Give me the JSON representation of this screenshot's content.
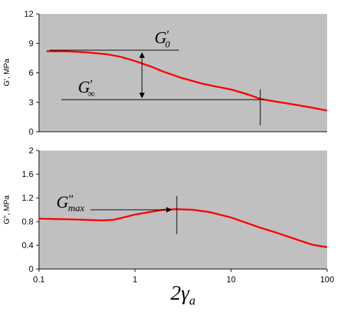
{
  "chart_data": [
    {
      "type": "line",
      "panel": "top",
      "ylabel": "G', MPa",
      "ylim": [
        0,
        12
      ],
      "yticks": [
        "0",
        "3",
        "6",
        "9",
        "12"
      ],
      "xscale": "log",
      "xlim": [
        0.1,
        100
      ],
      "grid": false,
      "series": [
        {
          "color": "#ff0000",
          "x": [
            0.12,
            0.2,
            0.3,
            0.5,
            0.7,
            1,
            1.5,
            2,
            3,
            5,
            7,
            10,
            15,
            20,
            30,
            50,
            70,
            100
          ],
          "y": [
            8.2,
            8.18,
            8.1,
            7.9,
            7.65,
            7.2,
            6.6,
            6.1,
            5.5,
            4.9,
            4.6,
            4.3,
            3.8,
            3.35,
            3.05,
            2.7,
            2.45,
            2.15
          ]
        }
      ],
      "annotations": [
        {
          "main": "G",
          "mark": "′",
          "sub": "0"
        },
        {
          "main": "G",
          "mark": "′",
          "sub": "∞"
        }
      ]
    },
    {
      "type": "line",
      "panel": "bottom",
      "ylabel": "G'', MPa",
      "ylim": [
        0,
        2
      ],
      "yticks": [
        "0",
        "0.4",
        "0.8",
        "1.2",
        "1.6",
        "2"
      ],
      "xscale": "log",
      "xlim": [
        0.1,
        100
      ],
      "xticks": [
        "0.1",
        "1",
        "10",
        "100"
      ],
      "xlabel_main": "2γ",
      "xlabel_sub": "a",
      "grid": false,
      "series": [
        {
          "color": "#ff0000",
          "x": [
            0.1,
            0.2,
            0.3,
            0.45,
            0.6,
            0.8,
            1,
            1.5,
            2,
            2.7,
            4,
            6,
            10,
            15,
            20,
            30,
            50,
            70,
            100
          ],
          "y": [
            0.85,
            0.84,
            0.83,
            0.82,
            0.83,
            0.88,
            0.92,
            0.97,
            1.0,
            1.01,
            1.0,
            0.96,
            0.87,
            0.77,
            0.7,
            0.61,
            0.49,
            0.41,
            0.37
          ]
        }
      ],
      "annotations": [
        {
          "main": "G",
          "mark": "″",
          "sub": "max"
        }
      ]
    }
  ]
}
